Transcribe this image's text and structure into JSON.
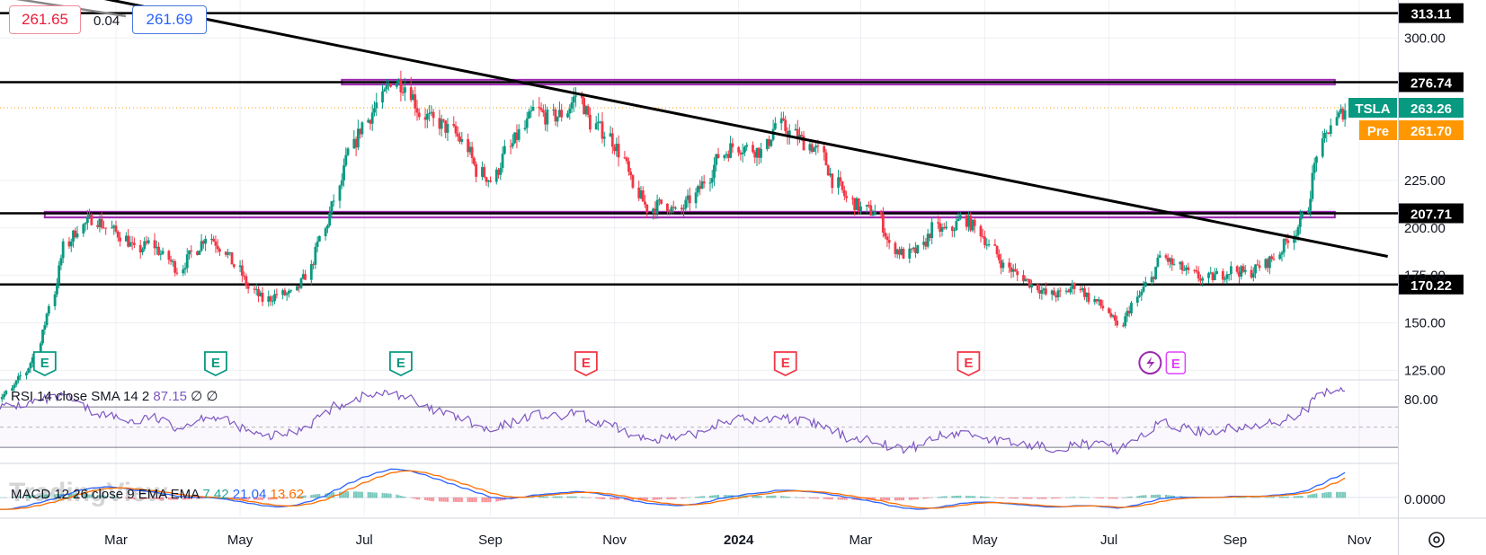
{
  "quote": {
    "bid": "261.65",
    "spread": "0.04",
    "ask": "261.69"
  },
  "watermark": "TradingView",
  "icons": {
    "earnings": "earnings-icon",
    "dividend": "flash-icon",
    "settings": "settings-icon"
  },
  "colors": {
    "up": "#089981",
    "down": "#f23645",
    "trend": "#000000",
    "zone": "#9c27b0",
    "pre": "#ff9800",
    "rsi": "#7e57c2",
    "macd": "#2962ff",
    "signal": "#ff6d00"
  },
  "chart_data": {
    "type": "candlestick",
    "symbol": "TSLA",
    "price_axis": {
      "ylim": [
        120,
        320
      ],
      "ticks": [
        "300.00",
        "225.00",
        "200.00",
        "175.00",
        "150.00",
        "125.00"
      ]
    },
    "time_axis": {
      "range": [
        "2023-01-03",
        "2024-11-20"
      ],
      "labels": [
        {
          "date": "2023-03-01",
          "text": "Mar"
        },
        {
          "date": "2023-05-01",
          "text": "May"
        },
        {
          "date": "2023-07-01",
          "text": "Jul"
        },
        {
          "date": "2023-09-01",
          "text": "Sep"
        },
        {
          "date": "2023-11-01",
          "text": "Nov"
        },
        {
          "date": "2024-01-01",
          "text": "2024"
        },
        {
          "date": "2024-03-01",
          "text": "Mar"
        },
        {
          "date": "2024-05-01",
          "text": "May"
        },
        {
          "date": "2024-07-01",
          "text": "Jul"
        },
        {
          "date": "2024-09-01",
          "text": "Sep"
        },
        {
          "date": "2024-11-01",
          "text": "Nov"
        }
      ]
    },
    "weekly_closes": {
      "start": "2023-01-06",
      "values": [
        113,
        122,
        134,
        160,
        190,
        200,
        205,
        200,
        196,
        188,
        192,
        185,
        178,
        187,
        196,
        190,
        180,
        168,
        162,
        165,
        165,
        175,
        195,
        215,
        240,
        255,
        265,
        278,
        275,
        260,
        256,
        252,
        245,
        230,
        225,
        240,
        250,
        262,
        258,
        260,
        270,
        255,
        250,
        240,
        220,
        210,
        213,
        208,
        215,
        225,
        238,
        243,
        242,
        240,
        255,
        250,
        245,
        240,
        225,
        215,
        210,
        208,
        190,
        186,
        188,
        200,
        198,
        205,
        200,
        190,
        180,
        175,
        170,
        165,
        165,
        170,
        163,
        158,
        147,
        160,
        170,
        185,
        180,
        176,
        173,
        175,
        178,
        176,
        180,
        185,
        195,
        205,
        240,
        255,
        263
      ]
    },
    "horizontal_levels": [
      {
        "value": 313.11,
        "label": "313.11"
      },
      {
        "value": 276.74,
        "label": "276.74"
      },
      {
        "value": 207.71,
        "label": "207.71"
      },
      {
        "value": 170.22,
        "label": "170.22"
      }
    ],
    "zones": [
      {
        "from_date": "2023-06-20",
        "to_date": "2024-10-20",
        "price_low": 275.5,
        "price_high": 278.0
      },
      {
        "from_date": "2023-01-25",
        "to_date": "2024-10-20",
        "price_low": 205.5,
        "price_high": 208.5
      }
    ],
    "trend_line": {
      "from": {
        "date": "2023-01-25",
        "price": 327
      },
      "to": {
        "date": "2024-11-15",
        "price": 185
      }
    },
    "last_price": {
      "symbol": "TSLA",
      "value": "263.26"
    },
    "pre_market": {
      "label": "Pre",
      "value": "261.70"
    },
    "earnings_markers": [
      {
        "date": "2023-01-25",
        "color": "up"
      },
      {
        "date": "2023-04-19",
        "color": "up"
      },
      {
        "date": "2023-07-19",
        "color": "up"
      },
      {
        "date": "2023-10-18",
        "color": "down"
      },
      {
        "date": "2024-01-24",
        "color": "down"
      },
      {
        "date": "2024-04-23",
        "color": "down"
      },
      {
        "date": "2024-07-23",
        "color": "upcoming"
      }
    ],
    "rsi": {
      "legend": "RSI 14 close SMA 14 2",
      "value": "87.15",
      "extras": [
        "∅",
        "∅"
      ],
      "upper": 70,
      "lower": 30,
      "mid": 50,
      "ylim": [
        15,
        95
      ],
      "axis_label": "80.00",
      "weekly_values": [
        70,
        72,
        75,
        78,
        80,
        72,
        65,
        62,
        58,
        55,
        60,
        55,
        50,
        55,
        62,
        58,
        52,
        45,
        40,
        42,
        45,
        52,
        62,
        70,
        76,
        80,
        82,
        84,
        80,
        70,
        66,
        62,
        58,
        50,
        45,
        52,
        58,
        63,
        60,
        60,
        65,
        55,
        52,
        48,
        40,
        38,
        40,
        38,
        42,
        48,
        55,
        58,
        58,
        55,
        62,
        58,
        55,
        52,
        45,
        40,
        38,
        38,
        30,
        28,
        32,
        40,
        42,
        45,
        42,
        38,
        35,
        33,
        32,
        30,
        30,
        34,
        32,
        32,
        28,
        38,
        44,
        55,
        50,
        48,
        45,
        47,
        50,
        48,
        52,
        55,
        60,
        66,
        80,
        86,
        87
      ]
    },
    "macd": {
      "legend": "MACD 12 26 close 9 EMA EMA",
      "histogram": "7.42",
      "macd": "21.04",
      "signal": "13.62",
      "ylim": [
        -16,
        28
      ],
      "axis_label": "0.0000",
      "weekly_values": [
        -10,
        -8,
        -5,
        -2,
        2,
        6,
        8,
        9,
        8,
        6,
        5,
        3,
        1,
        0,
        0,
        -1,
        -3,
        -5,
        -7,
        -8,
        -7,
        -4,
        0,
        6,
        12,
        17,
        21,
        24,
        23,
        20,
        16,
        12,
        8,
        4,
        0,
        -1,
        0,
        2,
        3,
        4,
        5,
        4,
        2,
        0,
        -3,
        -5,
        -6,
        -7,
        -6,
        -4,
        -1,
        1,
        3,
        4,
        6,
        6,
        5,
        4,
        2,
        0,
        -2,
        -4,
        -7,
        -9,
        -10,
        -9,
        -7,
        -5,
        -4,
        -4,
        -5,
        -6,
        -7,
        -8,
        -8,
        -7,
        -7,
        -8,
        -9,
        -7,
        -4,
        -1,
        0,
        0,
        0,
        0,
        1,
        1,
        1,
        2,
        3,
        5,
        10,
        16,
        21
      ]
    }
  }
}
